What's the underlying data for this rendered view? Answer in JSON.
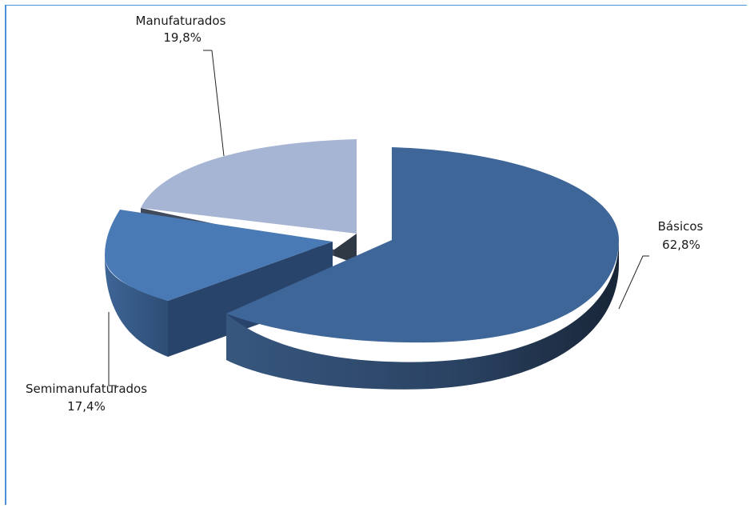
{
  "chart_data": {
    "type": "pie",
    "slices": [
      {
        "label": "Básicos",
        "value": 62.8,
        "value_label": "62,8%",
        "color": "#3f6699"
      },
      {
        "label": "Semimanufaturados",
        "value": 17.4,
        "value_label": "17,4%",
        "color": "#4a7ab6"
      },
      {
        "label": "Manufaturados",
        "value": 19.8,
        "value_label": "19,8%",
        "color": "#a6b5d3"
      }
    ],
    "style": "3d-exploded",
    "legend": "none"
  }
}
